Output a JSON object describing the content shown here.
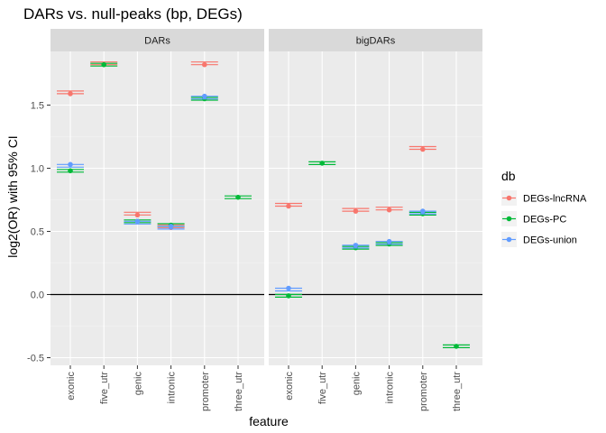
{
  "chart_data": {
    "type": "scatter",
    "title": "DARs vs. null-peaks (bp, DEGs)",
    "xlabel": "feature",
    "ylabel": "log2(OR) with 95% CI",
    "panels": [
      "DARs",
      "bigDARs"
    ],
    "categories": [
      "exonic",
      "five_utr",
      "genic",
      "intronic",
      "promoter",
      "three_utr"
    ],
    "ylim": [
      -0.55,
      1.95
    ],
    "yticks": [
      "-0.5",
      "0.0",
      "0.5",
      "1.0",
      "1.5"
    ],
    "yticks_values": [
      -0.5,
      0.0,
      0.5,
      1.0,
      1.5
    ],
    "reference_line": 0,
    "legend": {
      "title": "db",
      "placement": "right"
    },
    "grid": true,
    "series": [
      {
        "name": "DEGs-lncRNA",
        "color": "#F8766D",
        "values": {
          "DARs": [
            1.59,
            1.82,
            0.63,
            0.53,
            1.82,
            null
          ],
          "bigDARs": [
            0.7,
            null,
            0.66,
            0.67,
            1.15,
            null
          ]
        }
      },
      {
        "name": "DEGs-PC",
        "color": "#00BA38",
        "values": {
          "DARs": [
            0.98,
            1.82,
            0.58,
            0.55,
            1.55,
            0.77
          ],
          "bigDARs": [
            -0.01,
            1.04,
            0.37,
            0.4,
            0.64,
            -0.41
          ]
        }
      },
      {
        "name": "DEGs-union",
        "color": "#619CFF",
        "values": {
          "DARs": [
            1.03,
            null,
            0.58,
            0.54,
            1.57,
            null
          ],
          "bigDARs": [
            0.05,
            null,
            0.39,
            0.42,
            0.66,
            null
          ]
        }
      }
    ]
  }
}
